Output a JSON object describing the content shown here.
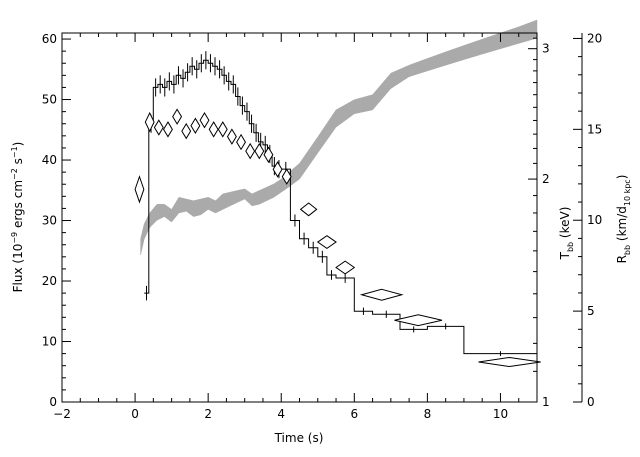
{
  "chart_data": {
    "type": "line",
    "xlabel": "Time (s)",
    "xlim": [
      -2,
      11
    ],
    "x_ticks": [
      "−2",
      "0",
      "2",
      "4",
      "6",
      "8",
      "10"
    ],
    "x_tick_values": [
      -2,
      0,
      2,
      4,
      6,
      8,
      10
    ],
    "left_axis": {
      "label_main": "Flux (10",
      "label_sup1": "−9",
      "label_mid": " ergs cm",
      "label_sup2": "−2",
      "label_mid2": " s",
      "label_sup3": "−1",
      "label_end": ")",
      "ylim": [
        0,
        61
      ],
      "ticks": [
        "0",
        "10",
        "20",
        "30",
        "40",
        "50",
        "60"
      ],
      "tick_values": [
        0,
        10,
        20,
        30,
        40,
        50,
        60
      ]
    },
    "temp_axis": {
      "label_main": "T",
      "label_sub": "bb",
      "label_end": " (keV)",
      "scale": "log",
      "lim": [
        1,
        3.15
      ],
      "ticks": [
        "1",
        "2",
        "3"
      ],
      "tick_values": [
        1,
        2,
        3
      ]
    },
    "radius_axis": {
      "label_main": "R",
      "label_sub": "bb",
      "label_mid": " (km/d",
      "label_sub2": "10 kpc",
      "label_end": ")",
      "lim": [
        0,
        20.3
      ],
      "ticks": [
        "0",
        "5",
        "10",
        "15",
        "20"
      ],
      "tick_values": [
        0,
        5,
        10,
        15,
        20
      ]
    },
    "series": [
      {
        "kind": "flux-histogram",
        "axis": "flux",
        "edges": [
          0.25,
          0.375,
          0.5,
          0.625,
          0.75,
          0.875,
          1.0,
          1.125,
          1.25,
          1.375,
          1.5,
          1.625,
          1.75,
          1.875,
          2.0,
          2.125,
          2.25,
          2.375,
          2.5,
          2.625,
          2.75,
          2.875,
          3.0,
          3.125,
          3.25,
          3.375,
          3.5,
          3.625,
          3.75,
          3.875,
          4.0,
          4.25,
          4.5,
          4.75,
          5.0,
          5.25,
          5.5,
          6.0,
          6.5,
          7.25,
          8.0,
          9.0,
          11.0
        ],
        "values": [
          18,
          46,
          52,
          52.5,
          52,
          53,
          52.5,
          54,
          53.5,
          54.5,
          55.5,
          55,
          56,
          56.5,
          56,
          55.5,
          55,
          54,
          53,
          52.5,
          50.5,
          49,
          48,
          46,
          44.5,
          43,
          42.5,
          41,
          39,
          38.5,
          38.5,
          30,
          27,
          25.5,
          24,
          21,
          20.5,
          15,
          14.5,
          12,
          12.5,
          8
        ],
        "error": [
          1.2,
          1.5,
          1.5,
          1.5,
          1.5,
          1.5,
          1.5,
          1.5,
          1.5,
          1.5,
          1.5,
          1.5,
          1.5,
          1.5,
          1.5,
          1.5,
          1.5,
          1.5,
          1.5,
          1.5,
          1.5,
          1.5,
          1.5,
          1.5,
          1.5,
          1.5,
          1.5,
          1.5,
          1.5,
          1.5,
          1.2,
          1.0,
          1.0,
          1.0,
          1.0,
          0.8,
          0.8,
          0.6,
          0.6,
          0.5,
          0.5,
          0.4
        ]
      },
      {
        "kind": "temperature-band",
        "axis": "temperature",
        "x": [
          0.15,
          0.25,
          0.4,
          0.6,
          0.8,
          1.0,
          1.2,
          1.4,
          1.6,
          1.8,
          2.0,
          2.2,
          2.4,
          2.6,
          2.8,
          3.0,
          3.2,
          3.4,
          3.6,
          3.8,
          4.0,
          4.2,
          4.5,
          5.0,
          5.5,
          6.0,
          6.5,
          7.0,
          7.5,
          8.0,
          8.5,
          9.0,
          9.5,
          10.0,
          10.5,
          11.0
        ],
        "lower": [
          1.58,
          1.66,
          1.72,
          1.76,
          1.78,
          1.75,
          1.8,
          1.81,
          1.78,
          1.79,
          1.82,
          1.8,
          1.82,
          1.84,
          1.86,
          1.88,
          1.84,
          1.85,
          1.87,
          1.89,
          1.92,
          1.95,
          2.0,
          2.17,
          2.35,
          2.45,
          2.48,
          2.65,
          2.75,
          2.8,
          2.85,
          2.9,
          2.95,
          3.0,
          3.05,
          3.1
        ],
        "upper": [
          1.66,
          1.74,
          1.8,
          1.85,
          1.85,
          1.82,
          1.89,
          1.88,
          1.87,
          1.88,
          1.89,
          1.87,
          1.91,
          1.92,
          1.93,
          1.94,
          1.91,
          1.93,
          1.95,
          1.97,
          2.0,
          2.04,
          2.1,
          2.28,
          2.48,
          2.56,
          2.6,
          2.78,
          2.85,
          2.91,
          2.97,
          3.03,
          3.09,
          3.15,
          3.21,
          3.28
        ]
      },
      {
        "kind": "radius-diamonds",
        "axis": "radius",
        "points": [
          {
            "x": 0.12,
            "y": 11.7,
            "xerr": 0.12,
            "yerr": 0.7
          },
          {
            "x": 0.4,
            "y": 15.4,
            "xerr": 0.12,
            "yerr": 0.5
          },
          {
            "x": 0.65,
            "y": 15.1,
            "xerr": 0.12,
            "yerr": 0.4
          },
          {
            "x": 0.9,
            "y": 15.0,
            "xerr": 0.12,
            "yerr": 0.4
          },
          {
            "x": 1.15,
            "y": 15.7,
            "xerr": 0.12,
            "yerr": 0.4
          },
          {
            "x": 1.4,
            "y": 14.9,
            "xerr": 0.12,
            "yerr": 0.4
          },
          {
            "x": 1.65,
            "y": 15.2,
            "xerr": 0.12,
            "yerr": 0.4
          },
          {
            "x": 1.9,
            "y": 15.5,
            "xerr": 0.12,
            "yerr": 0.4
          },
          {
            "x": 2.15,
            "y": 15.0,
            "xerr": 0.12,
            "yerr": 0.4
          },
          {
            "x": 2.4,
            "y": 15.0,
            "xerr": 0.12,
            "yerr": 0.4
          },
          {
            "x": 2.65,
            "y": 14.6,
            "xerr": 0.12,
            "yerr": 0.4
          },
          {
            "x": 2.9,
            "y": 14.3,
            "xerr": 0.12,
            "yerr": 0.4
          },
          {
            "x": 3.15,
            "y": 13.8,
            "xerr": 0.12,
            "yerr": 0.4
          },
          {
            "x": 3.4,
            "y": 13.8,
            "xerr": 0.12,
            "yerr": 0.4
          },
          {
            "x": 3.65,
            "y": 13.6,
            "xerr": 0.12,
            "yerr": 0.4
          },
          {
            "x": 3.9,
            "y": 12.8,
            "xerr": 0.12,
            "yerr": 0.4
          },
          {
            "x": 4.15,
            "y": 12.4,
            "xerr": 0.12,
            "yerr": 0.4
          },
          {
            "x": 4.75,
            "y": 10.6,
            "xerr": 0.22,
            "yerr": 0.35
          },
          {
            "x": 5.25,
            "y": 8.8,
            "xerr": 0.25,
            "yerr": 0.35
          },
          {
            "x": 5.75,
            "y": 7.4,
            "xerr": 0.25,
            "yerr": 0.35
          },
          {
            "x": 6.75,
            "y": 5.9,
            "xerr": 0.55,
            "yerr": 0.3
          },
          {
            "x": 7.75,
            "y": 4.5,
            "xerr": 0.65,
            "yerr": 0.3
          },
          {
            "x": 10.25,
            "y": 2.2,
            "xerr": 0.85,
            "yerr": 0.25
          }
        ]
      }
    ]
  }
}
